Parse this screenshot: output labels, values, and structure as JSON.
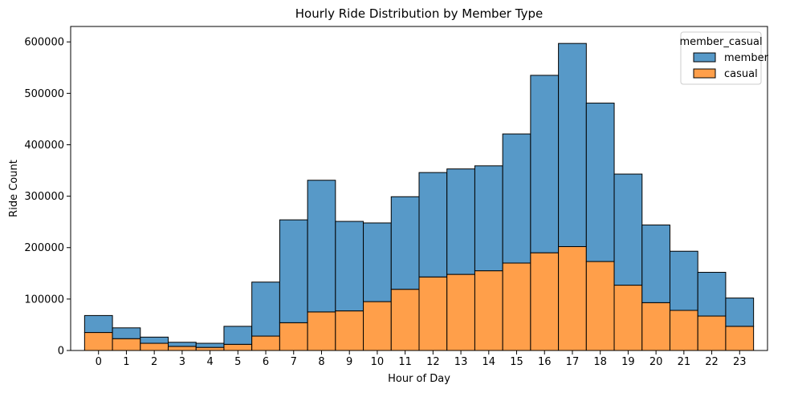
{
  "chart_data": {
    "type": "bar",
    "stacked": true,
    "title": "Hourly Ride Distribution by Member Type",
    "xlabel": "Hour of Day",
    "ylabel": "Ride Count",
    "categories": [
      "0",
      "1",
      "2",
      "3",
      "4",
      "5",
      "6",
      "7",
      "8",
      "9",
      "10",
      "11",
      "12",
      "13",
      "14",
      "15",
      "16",
      "17",
      "18",
      "19",
      "20",
      "21",
      "22",
      "23"
    ],
    "ylim": [
      0,
      630000
    ],
    "yticks": [
      0,
      100000,
      200000,
      300000,
      400000,
      500000,
      600000
    ],
    "ytick_labels": [
      "0",
      "100000",
      "200000",
      "300000",
      "400000",
      "500000",
      "600000"
    ],
    "grid": false,
    "legend": {
      "title": "member_casual",
      "placement": "top-right"
    },
    "series": [
      {
        "name": "casual",
        "color": "#ff9f4a",
        "values": [
          35000,
          23000,
          14000,
          8000,
          6000,
          12000,
          28000,
          54000,
          75000,
          77000,
          95000,
          119000,
          143000,
          148000,
          155000,
          170000,
          190000,
          202000,
          173000,
          127000,
          93000,
          78000,
          67000,
          47000
        ]
      },
      {
        "name": "member",
        "color": "#5799c8",
        "values": [
          33000,
          21000,
          12000,
          8000,
          8000,
          35000,
          105000,
          200000,
          256000,
          174000,
          153000,
          180000,
          203000,
          205000,
          204000,
          251000,
          345000,
          395000,
          308000,
          216000,
          151000,
          115000,
          85000,
          55000
        ]
      }
    ]
  }
}
